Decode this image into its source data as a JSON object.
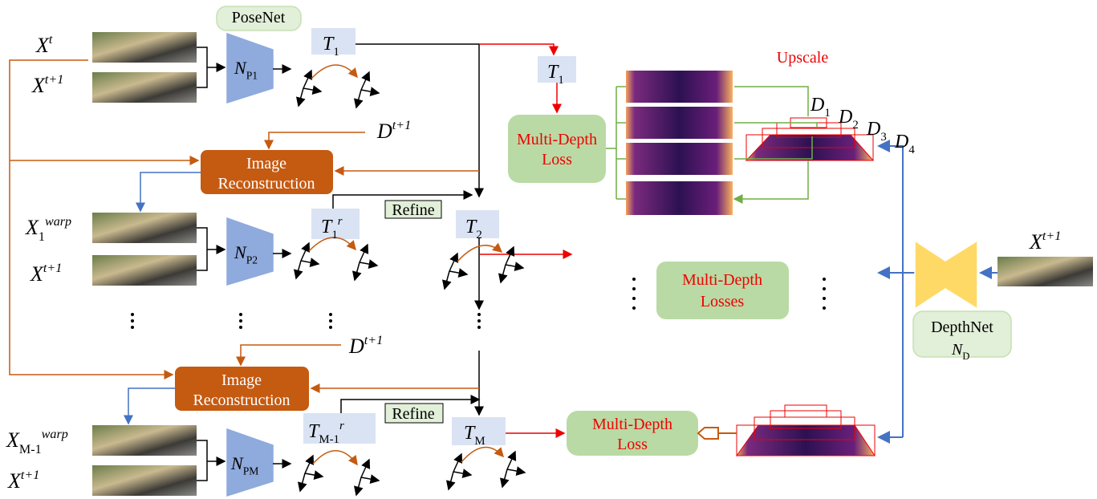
{
  "posenet": "PoseNet",
  "upscale": "Upscale",
  "depthnet": {
    "label": "DepthNet",
    "symbol": {
      "base": "N",
      "sub": "D"
    }
  },
  "depthnet_input": {
    "base": "X",
    "sup": "t+1"
  },
  "rows": [
    {
      "inputs": [
        {
          "base": "X",
          "sup": "t"
        },
        {
          "base": "X",
          "sup": "t+1"
        }
      ],
      "network": {
        "base": "N",
        "sub": "P1"
      },
      "pose": {
        "base": "T",
        "sub": "1"
      }
    },
    {
      "inputs": [
        {
          "base": "X",
          "sub": "1",
          "sup": "warp"
        },
        {
          "base": "X",
          "sup": "t+1"
        }
      ],
      "network": {
        "base": "N",
        "sub": "P2"
      },
      "refined_pose": {
        "base": "T",
        "sub": "1",
        "sup": "r"
      },
      "refine": "Refine",
      "pose": {
        "base": "T",
        "sub": "2"
      }
    },
    {
      "inputs": [
        {
          "base": "X",
          "sub": "M-1",
          "sup": "warp"
        },
        {
          "base": "X",
          "sup": "t+1"
        }
      ],
      "network": {
        "base": "N",
        "sub": "PM"
      },
      "refined_pose": {
        "base": "T",
        "sub": "M-1",
        "sup": "r"
      },
      "refine": "Refine",
      "pose": {
        "base": "T",
        "sub": "M"
      }
    }
  ],
  "reconstructions": [
    {
      "label_lines": [
        "Image",
        "Reconstruction"
      ],
      "depth": {
        "base": "D",
        "sup": "t+1"
      }
    },
    {
      "label_lines": [
        "Image",
        "Reconstruction"
      ],
      "depth": {
        "base": "D",
        "sup": "t+1"
      }
    }
  ],
  "loss_pose": {
    "base": "T",
    "sub": "1"
  },
  "losses": [
    [
      "Multi-Depth",
      "Loss"
    ],
    [
      "Multi-Depth",
      "Losses"
    ],
    [
      "Multi-Depth",
      "Loss"
    ]
  ],
  "depth_scales": [
    {
      "base": "D",
      "sub": "1"
    },
    {
      "base": "D",
      "sub": "2"
    },
    {
      "base": "D",
      "sub": "3"
    },
    {
      "base": "D",
      "sub": "4"
    }
  ]
}
